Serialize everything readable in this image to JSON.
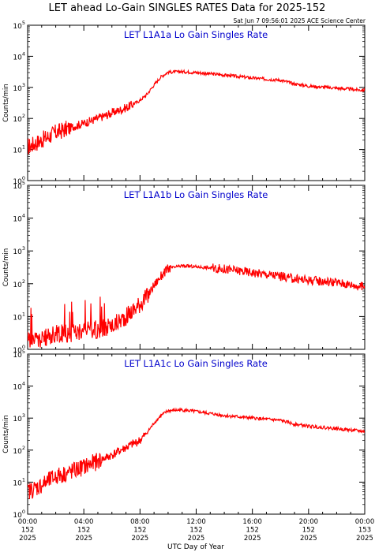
{
  "title": "LET ahead Lo-Gain SINGLES RATES Data for 2025-152",
  "timestamp": "Sat Jun  7 09:56:01 2025 ACE Science Center",
  "xlabel": "UTC Day of Year",
  "ylabel": "Counts/min",
  "colors": {
    "data": "#ff0000",
    "panel_title": "#0000cc",
    "axes": "#000000"
  },
  "chart_data": [
    {
      "type": "line",
      "panel_title": "LET L1A1a Lo Gain Singles Rate",
      "ylabel": "Counts/min",
      "yscale": "log",
      "ylim": [
        1,
        100000
      ],
      "xlim": [
        0,
        24
      ],
      "x_ticks": [
        {
          "hour": 0,
          "time": "00:00",
          "day": "152",
          "year": "2025"
        },
        {
          "hour": 4,
          "time": "04:00",
          "day": "152",
          "year": "2025"
        },
        {
          "hour": 8,
          "time": "08:00",
          "day": "152",
          "year": "2025"
        },
        {
          "hour": 12,
          "time": "12:00",
          "day": "152",
          "year": "2025"
        },
        {
          "hour": 16,
          "time": "16:00",
          "day": "152",
          "year": "2025"
        },
        {
          "hour": 20,
          "time": "20:00",
          "day": "152",
          "year": "2025"
        },
        {
          "hour": 24,
          "time": "00:00",
          "day": "153",
          "year": "2025"
        }
      ],
      "y_ticks": [
        "10^0",
        "10^1",
        "10^2",
        "10^3",
        "10^4",
        "10^5"
      ],
      "series": [
        {
          "x": [
            0,
            1,
            2,
            3,
            4,
            5,
            6,
            7,
            8,
            8.5,
            9,
            9.5,
            10,
            11,
            12,
            14,
            16,
            18,
            19,
            20,
            22,
            24
          ],
          "y": [
            12,
            20,
            35,
            50,
            70,
            100,
            150,
            220,
            380,
            600,
            1200,
            2200,
            3100,
            3200,
            3000,
            2500,
            2000,
            1700,
            1300,
            1100,
            950,
            800
          ]
        }
      ]
    },
    {
      "type": "line",
      "panel_title": "LET L1A1b Lo Gain Singles Rate",
      "ylabel": "Counts/min",
      "yscale": "log",
      "ylim": [
        1,
        100000
      ],
      "xlim": [
        0,
        24
      ],
      "x_ticks": [
        {
          "hour": 0,
          "time": "00:00",
          "day": "152",
          "year": "2025"
        },
        {
          "hour": 4,
          "time": "04:00",
          "day": "152",
          "year": "2025"
        },
        {
          "hour": 8,
          "time": "08:00",
          "day": "152",
          "year": "2025"
        },
        {
          "hour": 12,
          "time": "12:00",
          "day": "152",
          "year": "2025"
        },
        {
          "hour": 16,
          "time": "16:00",
          "day": "152",
          "year": "2025"
        },
        {
          "hour": 20,
          "time": "20:00",
          "day": "152",
          "year": "2025"
        },
        {
          "hour": 24,
          "time": "00:00",
          "day": "153",
          "year": "2025"
        }
      ],
      "y_ticks": [
        "10^0",
        "10^1",
        "10^2",
        "10^3",
        "10^4",
        "10^5"
      ],
      "series": [
        {
          "x": [
            0,
            1,
            2,
            3,
            4,
            5,
            6,
            6.5,
            7,
            7.5,
            8,
            8.5,
            9,
            9.5,
            10,
            11,
            12,
            14,
            16,
            18,
            19,
            20,
            22,
            24
          ],
          "y": [
            2,
            2,
            3,
            3,
            4,
            4,
            5,
            7,
            10,
            15,
            25,
            40,
            90,
            170,
            290,
            350,
            330,
            280,
            220,
            170,
            140,
            130,
            110,
            80
          ]
        }
      ]
    },
    {
      "type": "line",
      "panel_title": "LET L1A1c Lo Gain Singles Rate",
      "ylabel": "Counts/min",
      "yscale": "log",
      "ylim": [
        1,
        100000
      ],
      "xlim": [
        0,
        24
      ],
      "x_ticks": [
        {
          "hour": 0,
          "time": "00:00",
          "day": "152",
          "year": "2025"
        },
        {
          "hour": 4,
          "time": "04:00",
          "day": "152",
          "year": "2025"
        },
        {
          "hour": 8,
          "time": "08:00",
          "day": "152",
          "year": "2025"
        },
        {
          "hour": 12,
          "time": "12:00",
          "day": "152",
          "year": "2025"
        },
        {
          "hour": 16,
          "time": "16:00",
          "day": "152",
          "year": "2025"
        },
        {
          "hour": 20,
          "time": "20:00",
          "day": "152",
          "year": "2025"
        },
        {
          "hour": 24,
          "time": "00:00",
          "day": "153",
          "year": "2025"
        }
      ],
      "y_ticks": [
        "10^0",
        "10^1",
        "10^2",
        "10^3",
        "10^4",
        "10^5"
      ],
      "series": [
        {
          "x": [
            0,
            1,
            2,
            3,
            4,
            5,
            6,
            7,
            8,
            8.5,
            9,
            9.5,
            10,
            11,
            12,
            14,
            16,
            18,
            19,
            20,
            22,
            24
          ],
          "y": [
            5,
            8,
            15,
            20,
            30,
            45,
            70,
            120,
            200,
            350,
            700,
            1200,
            1700,
            1800,
            1600,
            1200,
            1000,
            850,
            650,
            560,
            470,
            380
          ]
        }
      ]
    }
  ]
}
